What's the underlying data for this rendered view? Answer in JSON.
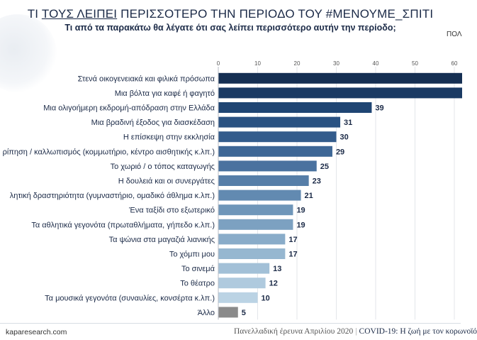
{
  "header": {
    "title_prefix": "ΤΙ ",
    "title_underlined": "ΤΟΥΣ ΛΕΙΠΕΙ",
    "title_suffix": " ΠΕΡΙΣΣΟΤΕΡΟ ΤΗΝ ΠΕΡΙΟΔΟ ΤΟΥ #ΜΕΝΟΥΜΕ_ΣΠΙΤΙ",
    "subtitle": "Τι από τα παρακάτω θα λέγατε ότι σας λείπει περισσότερο αυτήν την περίοδο;",
    "corner_text": "ΠΟΛ"
  },
  "chart_data": {
    "type": "bar",
    "orientation": "horizontal",
    "xlim": [
      0,
      65
    ],
    "xticks": [
      0,
      10,
      20,
      30,
      40,
      50,
      60
    ],
    "grid": true,
    "categories": [
      "Στενά οικογενειακά και φιλικά πρόσωπα",
      "Μια βόλτα για καφέ ή φαγητό",
      "Μια ολιγοήμερη εκδρομή-απόδραση στην Ελλάδα",
      "Μια βραδινή έξοδος για διασκέδαση",
      "Η επίσκεψη στην εκκλησία",
      "ρίπηση / καλλωπισμός (κομμωτήριο, κέντρο αισθητικής κ.λπ.)",
      "Το χωριό / ο τόπος καταγωγής",
      "Η δουλειά και οι συνεργάτες",
      "λητική δραστηριότητα (γυμναστήριο, ομαδικό άθλημα κ.λπ.)",
      "Ένα ταξίδι στο εξωτερικό",
      "Τα αθλητικά γεγονότα (πρωταθλήματα, γήπεδο κ.λπ.)",
      "Τα ψώνια στα μαγαζιά λιανικής",
      "Το χόμπι μου",
      "Το σινεμά",
      "Το θέατρο",
      "Τα μουσικά γεγονότα (συναυλίες, κονσέρτα κ.λπ.)",
      "Άλλο"
    ],
    "values": [
      65,
      62,
      39,
      31,
      30,
      29,
      25,
      23,
      21,
      19,
      19,
      17,
      17,
      13,
      12,
      10,
      5
    ],
    "value_labels": [
      "",
      "",
      "39",
      "31",
      "30",
      "29",
      "25",
      "23",
      "21",
      "19",
      "19",
      "17",
      "17",
      "13",
      "12",
      "10",
      "5"
    ],
    "colors": [
      "#152f52",
      "#1a3a63",
      "#1f4573",
      "#2a5282",
      "#335c8c",
      "#3e6796",
      "#4a729f",
      "#567ea8",
      "#628ab1",
      "#6f96b9",
      "#7ca1c1",
      "#89acc9",
      "#96b7d0",
      "#a2c0d7",
      "#afcade",
      "#bbd3e4",
      "#8a8a8a"
    ]
  },
  "footer": {
    "left": "kaparesearch.com",
    "right_main": "Πανελλαδική έρευνα Απριλίου 2020",
    "right_sep": "|",
    "right_covid": "COVID-19: Η ζωή με τον κορωνοϊό"
  }
}
